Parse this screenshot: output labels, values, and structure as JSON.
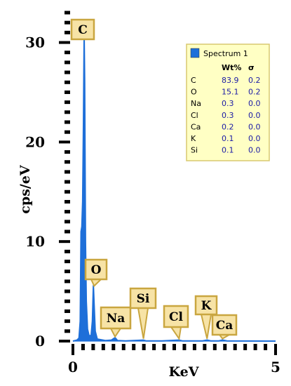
{
  "chart_data": {
    "type": "spectrum",
    "title": "",
    "xlabel": "KeV",
    "ylabel": "cps/eV",
    "xlim": [
      0,
      5
    ],
    "ylim": [
      0,
      33
    ],
    "x_ticks": [
      {
        "value": 0,
        "label": "0"
      },
      {
        "value": 5,
        "label": "5"
      }
    ],
    "y_ticks": [
      {
        "value": 0,
        "label": "0"
      },
      {
        "value": 10,
        "label": "10"
      },
      {
        "value": 20,
        "label": "20"
      },
      {
        "value": 30,
        "label": "30"
      }
    ],
    "series": [
      {
        "name": "Spectrum 1",
        "color": "#1e6fd9",
        "points": [
          [
            0.0,
            0
          ],
          [
            0.1,
            0.1
          ],
          [
            0.15,
            0.3
          ],
          [
            0.18,
            2.0
          ],
          [
            0.2,
            11.0
          ],
          [
            0.22,
            11.5
          ],
          [
            0.24,
            14.0
          ],
          [
            0.26,
            22.0
          ],
          [
            0.277,
            30.8
          ],
          [
            0.29,
            26.0
          ],
          [
            0.31,
            10.0
          ],
          [
            0.33,
            4.0
          ],
          [
            0.36,
            1.2
          ],
          [
            0.4,
            0.5
          ],
          [
            0.45,
            0.6
          ],
          [
            0.48,
            2.0
          ],
          [
            0.505,
            5.6
          ],
          [
            0.52,
            4.0
          ],
          [
            0.55,
            1.0
          ],
          [
            0.6,
            0.2
          ],
          [
            0.8,
            0.05
          ],
          [
            0.95,
            0.1
          ],
          [
            1.04,
            0.35
          ],
          [
            1.1,
            0.05
          ],
          [
            1.3,
            0.02
          ],
          [
            1.74,
            0.1
          ],
          [
            1.8,
            0.02
          ],
          [
            2.2,
            0.02
          ],
          [
            2.62,
            0.1
          ],
          [
            2.7,
            0.02
          ],
          [
            3.2,
            0.02
          ],
          [
            3.31,
            0.1
          ],
          [
            3.4,
            0.02
          ],
          [
            3.6,
            0.02
          ],
          [
            3.69,
            0.1
          ],
          [
            3.8,
            0.02
          ],
          [
            5.0,
            0
          ]
        ]
      }
    ],
    "peak_labels": [
      {
        "element": "C",
        "x": 0.277,
        "y": 30.8
      },
      {
        "element": "O",
        "x": 0.525,
        "y": 5.4
      },
      {
        "element": "Na",
        "x": 1.04,
        "y": 0.3
      },
      {
        "element": "Si",
        "x": 1.74,
        "y": 0.1
      },
      {
        "element": "Cl",
        "x": 2.62,
        "y": 0.1
      },
      {
        "element": "K",
        "x": 3.31,
        "y": 0.1
      },
      {
        "element": "Ca",
        "x": 3.69,
        "y": 0.1
      }
    ],
    "legend": {
      "position": "top-right",
      "series_name": "Spectrum 1",
      "headers": [
        "Wt%",
        "σ"
      ],
      "rows": [
        {
          "element": "C",
          "wt": "83.9",
          "sigma": "0.2"
        },
        {
          "element": "O",
          "wt": "15.1",
          "sigma": "0.2"
        },
        {
          "element": "Na",
          "wt": "0.3",
          "sigma": "0.0"
        },
        {
          "element": "Cl",
          "wt": "0.3",
          "sigma": "0.0"
        },
        {
          "element": "Ca",
          "wt": "0.2",
          "sigma": "0.0"
        },
        {
          "element": "K",
          "wt": "0.1",
          "sigma": "0.0"
        },
        {
          "element": "Si",
          "wt": "0.1",
          "sigma": "0.0"
        }
      ]
    },
    "colors": {
      "spectrum": "#1e6fd9",
      "label_fill": "#f7e3a6",
      "label_border": "#c9a640",
      "legend_fill": "#ffffc4",
      "legend_border": "#d8c870",
      "legend_swatch": "#1e6fd9"
    },
    "grid": false
  }
}
